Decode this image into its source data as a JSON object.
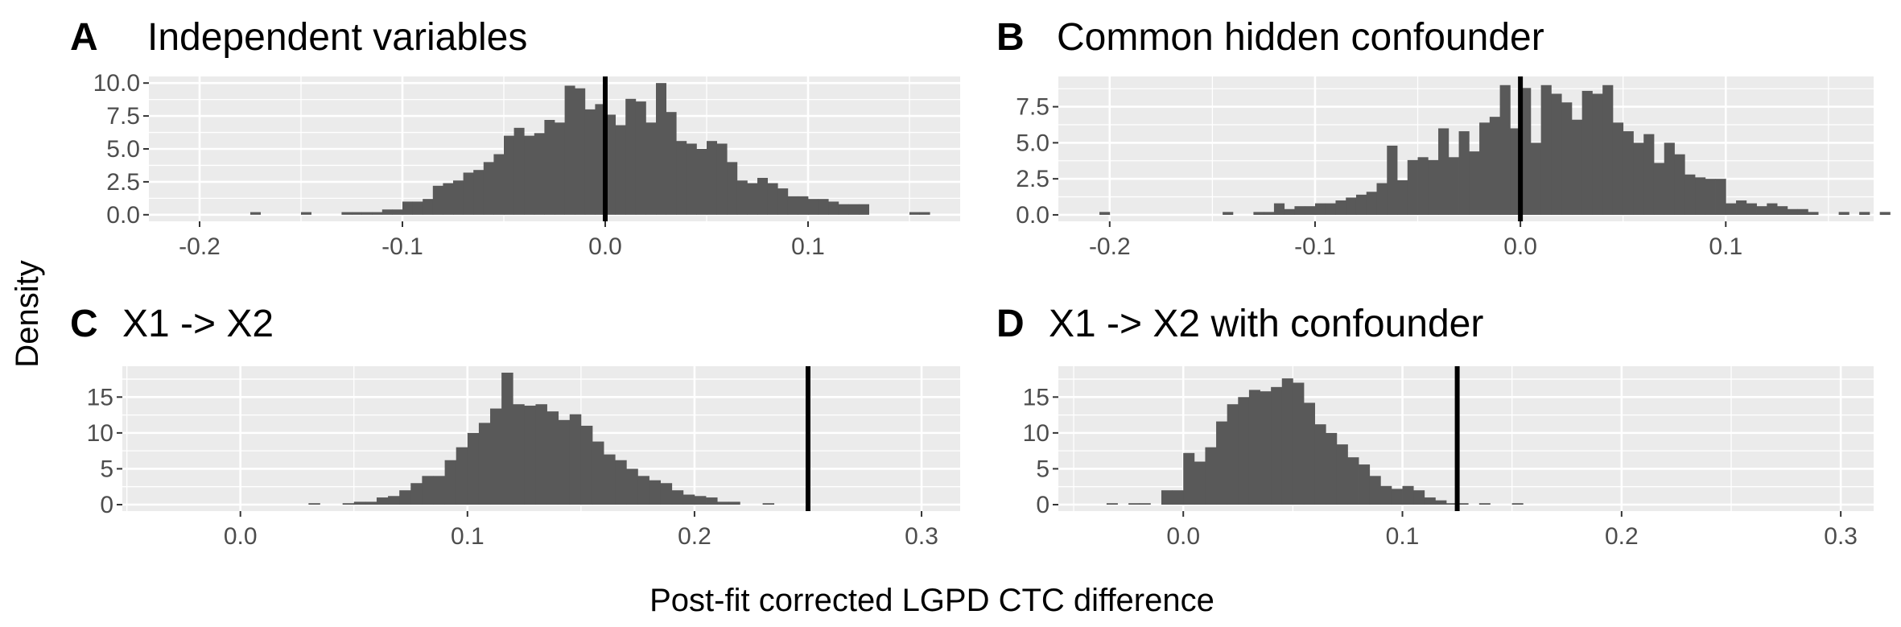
{
  "figure": {
    "ylabel": "Density",
    "xlabel": "Post-fit corrected LGPD CTC difference"
  },
  "colors": {
    "panel_bg": "#ebebeb",
    "grid": "#ffffff",
    "bar": "#595959",
    "vline": "#000000",
    "tick_text": "#4d4d4d"
  },
  "chart_data": [
    {
      "type": "bar",
      "tag": "A",
      "title": "Independent variables",
      "xlim": [
        -0.225,
        0.175
      ],
      "ylim": [
        -0.5,
        10.5
      ],
      "x_ticks": [
        -0.2,
        -0.1,
        0.0,
        0.1
      ],
      "x_tick_labels": [
        "-0.2",
        "-0.1",
        "0.0",
        "0.1"
      ],
      "y_ticks": [
        0,
        2.5,
        5,
        7.5,
        10
      ],
      "y_tick_labels": [
        "0.0",
        "2.5",
        "5.0",
        "7.5",
        "10.0"
      ],
      "bin_width": 0.005,
      "bin_start": -0.175,
      "values": [
        0.2,
        0,
        0,
        0,
        0,
        0.2,
        0,
        0,
        0,
        0.2,
        0.2,
        0.2,
        0.2,
        0.4,
        0.4,
        1,
        1,
        1.2,
        2.2,
        2.4,
        2.6,
        3.2,
        3.4,
        4,
        4.6,
        6,
        6.6,
        6,
        6.2,
        7.2,
        7,
        9.8,
        9.6,
        8,
        8.4,
        7.6,
        6.8,
        8.8,
        8.6,
        7,
        10,
        7.8,
        5.6,
        5.4,
        5,
        5.6,
        5.4,
        4,
        2.6,
        2.4,
        2.8,
        2.4,
        2,
        1.4,
        1.4,
        1.2,
        1.2,
        1,
        0.8,
        0.8,
        0.8,
        0,
        0,
        0,
        0,
        0.2,
        0.2,
        0,
        0,
        0
      ],
      "vline": 0.0,
      "grid": true
    },
    {
      "type": "bar",
      "tag": "B",
      "title": "Common hidden confounder",
      "xlim": [
        -0.225,
        0.172
      ],
      "ylim": [
        -0.45,
        9.6
      ],
      "x_ticks": [
        -0.2,
        -0.1,
        0.0,
        0.1
      ],
      "x_tick_labels": [
        "-0.2",
        "-0.1",
        "0.0",
        "0.1"
      ],
      "y_ticks": [
        0,
        2.5,
        5,
        7.5
      ],
      "y_tick_labels": [
        "0.0",
        "2.5",
        "5.0",
        "7.5"
      ],
      "bin_width": 0.005,
      "bin_start": -0.205,
      "values": [
        0.2,
        0,
        0,
        0,
        0,
        0,
        0,
        0,
        0,
        0,
        0,
        0,
        0.2,
        0,
        0,
        0.2,
        0.2,
        0.8,
        0.4,
        0.6,
        0.6,
        0.8,
        0.8,
        1,
        1.2,
        1.4,
        1.6,
        2.2,
        4.8,
        2.4,
        3.8,
        4,
        3.8,
        6,
        4,
        5.8,
        4.4,
        6.4,
        6.8,
        9,
        6,
        8.8,
        5,
        9,
        8.4,
        7.8,
        6.6,
        8.6,
        8.4,
        9,
        6.4,
        5.8,
        5,
        5.6,
        3.6,
        5,
        4.2,
        2.8,
        2.6,
        2.5,
        2.5,
        0.8,
        1,
        0.8,
        0.6,
        0.8,
        0.6,
        0.4,
        0.4,
        0.2,
        0,
        0,
        0.2,
        0,
        0.2,
        0,
        0.2,
        0,
        0,
        0.2
      ],
      "vline": 0.0,
      "grid": true
    },
    {
      "type": "bar",
      "tag": "C",
      "title": "X1 -> X2",
      "xlim": [
        -0.052,
        0.317
      ],
      "ylim": [
        -0.9,
        19.3
      ],
      "x_ticks": [
        0.0,
        0.1,
        0.2,
        0.3
      ],
      "x_tick_labels": [
        "0.0",
        "0.1",
        "0.2",
        "0.3"
      ],
      "y_ticks": [
        0,
        5,
        10,
        15
      ],
      "y_tick_labels": [
        "0",
        "5",
        "10",
        "15"
      ],
      "bin_width": 0.005,
      "bin_start": 0.03,
      "values": [
        0.2,
        0,
        0,
        0.2,
        0.4,
        0.4,
        1,
        1.2,
        2,
        3,
        4,
        4,
        6.2,
        8,
        10,
        11.4,
        13.4,
        18.4,
        14,
        13.8,
        14,
        13,
        11.8,
        12.6,
        11,
        8.8,
        7,
        6.2,
        5,
        4,
        3.4,
        3,
        2,
        1.4,
        1.2,
        1,
        0.4,
        0.4,
        0,
        0,
        0.2
      ],
      "vline": 0.25,
      "grid": true
    },
    {
      "type": "bar",
      "tag": "D",
      "title": "X1 -> X2 with confounder",
      "xlim": [
        -0.057,
        0.315
      ],
      "ylim": [
        -0.9,
        19.3
      ],
      "x_ticks": [
        0.0,
        0.1,
        0.2,
        0.3
      ],
      "x_tick_labels": [
        "0.0",
        "0.1",
        "0.2",
        "0.3"
      ],
      "y_ticks": [
        0,
        5,
        10,
        15
      ],
      "y_tick_labels": [
        "0",
        "5",
        "10",
        "15"
      ],
      "bin_width": 0.005,
      "bin_start": -0.035,
      "values": [
        0.2,
        0,
        0.2,
        0.2,
        0,
        2,
        2,
        7.2,
        6,
        8,
        11.6,
        14,
        15,
        16,
        15.8,
        16.4,
        17.6,
        17,
        14.2,
        11.2,
        10,
        8.4,
        6.6,
        5.6,
        4,
        2.6,
        2.2,
        2.6,
        2,
        1,
        0.6,
        0.2,
        0.2,
        0,
        0.2,
        0,
        0,
        0.2
      ],
      "vline": 0.125,
      "grid": true
    }
  ]
}
